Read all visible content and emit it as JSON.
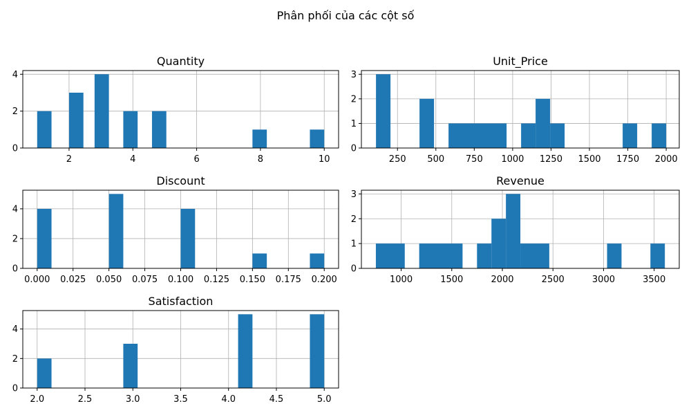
{
  "figure": {
    "suptitle": "Phân phối của các cột số"
  },
  "chart_data": [
    {
      "type": "bar",
      "title": "Quantity",
      "xlim": [
        0.55,
        10.45
      ],
      "ylim": [
        0,
        4.2
      ],
      "xticks": [
        2,
        4,
        6,
        8,
        10
      ],
      "xtick_labels": [
        "2",
        "4",
        "6",
        "8",
        "10"
      ],
      "yticks": [
        0,
        2,
        4
      ],
      "ytick_labels": [
        "0",
        "2",
        "4"
      ],
      "bins": [
        [
          1,
          1.45,
          2
        ],
        [
          2,
          2.45,
          3
        ],
        [
          2.8,
          3.25,
          4
        ],
        [
          3.7,
          4.15,
          2
        ],
        [
          4.6,
          5.05,
          2
        ],
        [
          7.75,
          8.2,
          1
        ],
        [
          9.55,
          10,
          1
        ]
      ]
    },
    {
      "type": "bar",
      "title": "Unit_Price",
      "xlim": [
        15,
        2085
      ],
      "ylim": [
        0,
        3.15
      ],
      "xticks": [
        250,
        500,
        750,
        1000,
        1250,
        1500,
        1750,
        2000
      ],
      "xtick_labels": [
        "250",
        "500",
        "750",
        "1000",
        "1250",
        "1500",
        "1750",
        "2000"
      ],
      "yticks": [
        0,
        1,
        2,
        3
      ],
      "ytick_labels": [
        "0",
        "1",
        "2",
        "3"
      ],
      "bins": [
        [
          110,
          204.5,
          3
        ],
        [
          393.5,
          488,
          2
        ],
        [
          582.5,
          960.5,
          1
        ],
        [
          1055,
          1149.5,
          1
        ],
        [
          1149.5,
          1244,
          2
        ],
        [
          1244,
          1338.5,
          1
        ],
        [
          1716.5,
          1811,
          1
        ],
        [
          1905.5,
          2000,
          1
        ]
      ]
    },
    {
      "type": "bar",
      "title": "Discount",
      "xlim": [
        -0.01,
        0.21
      ],
      "ylim": [
        0,
        5.25
      ],
      "xticks": [
        0.0,
        0.025,
        0.05,
        0.075,
        0.1,
        0.125,
        0.15,
        0.175,
        0.2
      ],
      "xtick_labels": [
        "0.000",
        "0.025",
        "0.050",
        "0.075",
        "0.100",
        "0.125",
        "0.150",
        "0.175",
        "0.200"
      ],
      "yticks": [
        0,
        2,
        4
      ],
      "ytick_labels": [
        "0",
        "2",
        "4"
      ],
      "bins": [
        [
          0,
          0.01,
          4
        ],
        [
          0.05,
          0.06,
          5
        ],
        [
          0.1,
          0.11,
          4
        ],
        [
          0.15,
          0.16,
          1
        ],
        [
          0.19,
          0.2,
          1
        ]
      ]
    },
    {
      "type": "bar",
      "title": "Revenue",
      "xlim": [
        607,
        3748
      ],
      "ylim": [
        0,
        3.15
      ],
      "xticks": [
        1000,
        1500,
        2000,
        2500,
        3000,
        3500
      ],
      "xtick_labels": [
        "1000",
        "1500",
        "2000",
        "2500",
        "3000",
        "3500"
      ],
      "yticks": [
        0,
        1,
        2,
        3
      ],
      "ytick_labels": [
        "0",
        "1",
        "2",
        "3"
      ],
      "bins": [
        [
          750,
          1035.5,
          1
        ],
        [
          1178.3,
          1606.7,
          1
        ],
        [
          1749.5,
          1892.3,
          1
        ],
        [
          1892.3,
          2035.1,
          2
        ],
        [
          2035.1,
          2177.9,
          3
        ],
        [
          2177.9,
          2463.5,
          1
        ],
        [
          3034.7,
          3177.5,
          1
        ],
        [
          3463,
          3605.8,
          1
        ]
      ]
    },
    {
      "type": "bar",
      "title": "Satisfaction",
      "xlim": [
        1.85,
        5.15
      ],
      "ylim": [
        0,
        5.25
      ],
      "xticks": [
        2.0,
        2.5,
        3.0,
        3.5,
        4.0,
        4.5,
        5.0
      ],
      "xtick_labels": [
        "2.0",
        "2.5",
        "3.0",
        "3.5",
        "4.0",
        "4.5",
        "5.0"
      ],
      "yticks": [
        0,
        2,
        4
      ],
      "ytick_labels": [
        "0",
        "2",
        "4"
      ],
      "bins": [
        [
          2,
          2.15,
          2
        ],
        [
          2.9,
          3.05,
          3
        ],
        [
          4.1,
          4.25,
          5
        ],
        [
          4.85,
          5,
          5
        ]
      ]
    }
  ]
}
